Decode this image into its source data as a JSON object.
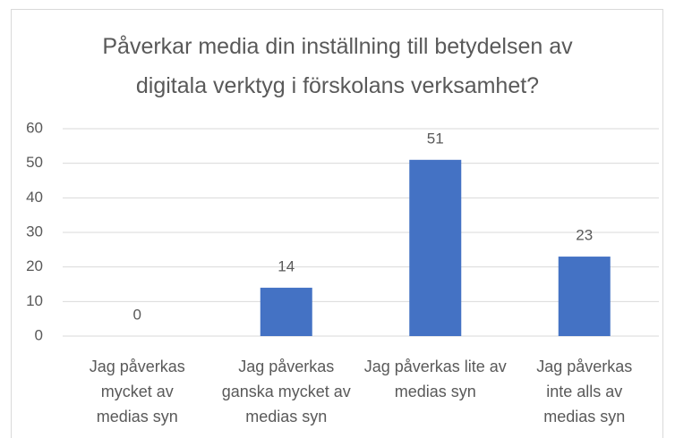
{
  "chart_data": {
    "type": "bar",
    "title": "Påverkar media din inställning till betydelsen av digitala verktyg i förskolans verksamhet?",
    "categories": [
      "Jag påverkas mycket av medias syn",
      "Jag påverkas ganska mycket av medias syn",
      "Jag påverkas lite av medias syn",
      "Jag påverkas inte alls av medias syn"
    ],
    "values": [
      0,
      14,
      51,
      23
    ],
    "color": "#4472c4",
    "ylim": [
      0,
      60
    ],
    "yticks": [
      0,
      10,
      20,
      30,
      40,
      50,
      60
    ],
    "grid": true
  }
}
